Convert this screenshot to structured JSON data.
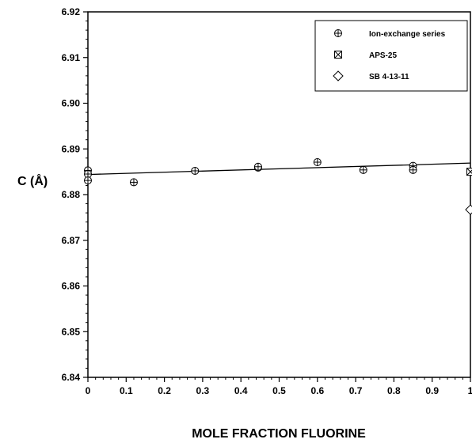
{
  "chart_data": {
    "type": "scatter",
    "xlabel": "MOLE FRACTION FLUORINE",
    "ylabel": "C (Å)",
    "xlim": [
      0,
      1
    ],
    "ylim": [
      6.84,
      6.92
    ],
    "x_ticks": [
      "0",
      "0.1",
      "0.2",
      "0.3",
      "0.4",
      "0.5",
      "0.6",
      "0.7",
      "0.8",
      "0.9",
      "1"
    ],
    "y_ticks": [
      "6.84",
      "6.85",
      "6.86",
      "6.87",
      "6.88",
      "6.89",
      "6.90",
      "6.91",
      "6.92"
    ],
    "grid": false,
    "legend_position": "top-right",
    "series": [
      {
        "name": "Ion-exchange series",
        "marker": "circle-plus",
        "points": [
          {
            "x": 0.0,
            "y": 6.8853
          },
          {
            "x": 0.0,
            "y": 6.8845
          },
          {
            "x": 0.0,
            "y": 6.8831
          },
          {
            "x": 0.12,
            "y": 6.8827
          },
          {
            "x": 0.28,
            "y": 6.8852
          },
          {
            "x": 0.445,
            "y": 6.8859
          },
          {
            "x": 0.445,
            "y": 6.8861
          },
          {
            "x": 0.6,
            "y": 6.8871
          },
          {
            "x": 0.72,
            "y": 6.8854
          },
          {
            "x": 0.85,
            "y": 6.8863
          },
          {
            "x": 0.85,
            "y": 6.8854
          }
        ]
      },
      {
        "name": "APS-25",
        "marker": "square-x",
        "points": [
          {
            "x": 1.0,
            "y": 6.885
          }
        ]
      },
      {
        "name": "SB 4-13-11",
        "marker": "diamond",
        "points": [
          {
            "x": 1.0,
            "y": 6.8767
          }
        ]
      }
    ],
    "fit_line": {
      "x": [
        0,
        1
      ],
      "y": [
        6.8844,
        6.8869
      ]
    }
  }
}
